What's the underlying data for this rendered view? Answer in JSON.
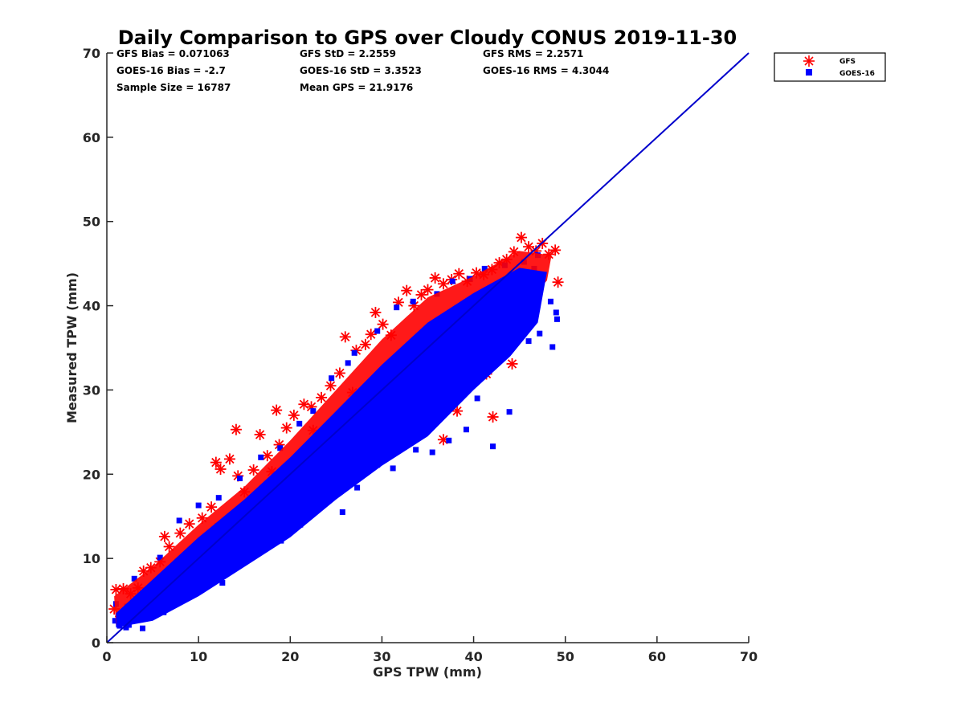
{
  "chart_data": {
    "type": "scatter",
    "title": "Daily Comparison to GPS over Cloudy CONUS 2019-11-30",
    "xlabel": "GPS TPW (mm)",
    "ylabel": "Measured TPW (mm)",
    "xlim": [
      0,
      70
    ],
    "ylim": [
      0,
      70
    ],
    "xticks": [
      "0",
      "10",
      "20",
      "30",
      "40",
      "50",
      "60",
      "70"
    ],
    "yticks": [
      "0",
      "10",
      "20",
      "30",
      "40",
      "50",
      "60",
      "70"
    ],
    "grid": false,
    "legend_position": "outside-top-right",
    "stats": {
      "gfs_bias": "GFS Bias = 0.071063",
      "goes_bias": "GOES-16 Bias = -2.7",
      "sample_size": "Sample Size = 16787",
      "gfs_std": "GFS StD = 2.2559",
      "goes_std": "GOES-16 StD = 3.3523",
      "mean_gps": "Mean GPS = 21.9176",
      "gfs_rms": "GFS RMS = 2.2571",
      "goes_rms": "GOES-16 RMS = 4.3044"
    },
    "reference_line": {
      "x": [
        0,
        70
      ],
      "y": [
        0,
        70
      ],
      "color": "#0000cc"
    },
    "series": [
      {
        "name": "GFS",
        "marker": "asterisk",
        "color": "#ff0000",
        "points": [
          [
            0.8,
            4.0
          ],
          [
            1.0,
            6.3
          ],
          [
            1.8,
            6.4
          ],
          [
            2.6,
            5.8
          ],
          [
            3.4,
            6.5
          ],
          [
            4.0,
            8.5
          ],
          [
            4.8,
            8.9
          ],
          [
            5.8,
            9.6
          ],
          [
            6.3,
            12.6
          ],
          [
            6.8,
            11.4
          ],
          [
            8.0,
            13.0
          ],
          [
            9.0,
            14.1
          ],
          [
            10.4,
            14.8
          ],
          [
            11.4,
            16.1
          ],
          [
            11.9,
            21.4
          ],
          [
            12.4,
            20.6
          ],
          [
            13.4,
            21.8
          ],
          [
            14.1,
            25.3
          ],
          [
            14.3,
            19.8
          ],
          [
            15.0,
            17.9
          ],
          [
            16.0,
            20.5
          ],
          [
            16.7,
            24.7
          ],
          [
            17.5,
            22.2
          ],
          [
            18.5,
            27.6
          ],
          [
            18.8,
            23.5
          ],
          [
            19.6,
            25.5
          ],
          [
            20.4,
            27.0
          ],
          [
            21.5,
            28.3
          ],
          [
            22.3,
            28.0
          ],
          [
            23.4,
            29.1
          ],
          [
            24.4,
            30.5
          ],
          [
            25.4,
            32.0
          ],
          [
            26.0,
            36.3
          ],
          [
            27.2,
            34.7
          ],
          [
            28.2,
            35.4
          ],
          [
            28.8,
            36.6
          ],
          [
            29.3,
            39.2
          ],
          [
            30.1,
            37.8
          ],
          [
            31.0,
            36.5
          ],
          [
            31.8,
            40.4
          ],
          [
            32.7,
            41.8
          ],
          [
            33.5,
            40.0
          ],
          [
            34.3,
            41.3
          ],
          [
            35.0,
            41.9
          ],
          [
            35.8,
            43.3
          ],
          [
            36.7,
            42.6
          ],
          [
            37.6,
            43.1
          ],
          [
            38.4,
            43.8
          ],
          [
            39.3,
            42.9
          ],
          [
            40.3,
            43.9
          ],
          [
            41.1,
            43.7
          ],
          [
            42.0,
            44.3
          ],
          [
            42.8,
            45.1
          ],
          [
            43.6,
            45.5
          ],
          [
            44.4,
            46.4
          ],
          [
            45.2,
            48.1
          ],
          [
            46.0,
            47.0
          ],
          [
            46.8,
            46.5
          ],
          [
            47.5,
            47.4
          ],
          [
            48.2,
            46.1
          ],
          [
            48.9,
            46.6
          ],
          [
            49.2,
            42.8
          ],
          [
            44.2,
            33.1
          ],
          [
            42.1,
            26.8
          ],
          [
            43.0,
            36.1
          ],
          [
            32.0,
            26.8
          ],
          [
            36.7,
            24.1
          ],
          [
            44.8,
            37.4
          ],
          [
            41.4,
            31.9
          ],
          [
            38.2,
            27.5
          ],
          [
            34.0,
            28.9
          ],
          [
            30.5,
            31.1
          ],
          [
            26.8,
            29.7
          ],
          [
            22.5,
            25.2
          ],
          [
            18.0,
            20.3
          ],
          [
            12.2,
            13.7
          ],
          [
            7.3,
            8.8
          ],
          [
            3.0,
            4.6
          ],
          [
            1.5,
            3.1
          ],
          [
            10.0,
            7.5
          ],
          [
            15.6,
            12.4
          ],
          [
            20.1,
            18.7
          ],
          [
            24.0,
            22.6
          ],
          [
            28.0,
            25.3
          ]
        ]
      },
      {
        "name": "GOES-16",
        "marker": "square",
        "color": "#0000ff",
        "points": [
          [
            0.9,
            2.6
          ],
          [
            1.4,
            2.0
          ],
          [
            1.6,
            3.3
          ],
          [
            2.4,
            2.1
          ],
          [
            2.9,
            3.1
          ],
          [
            3.6,
            2.8
          ],
          [
            4.4,
            3.2
          ],
          [
            5.1,
            3.8
          ],
          [
            5.9,
            4.4
          ],
          [
            6.5,
            5.1
          ],
          [
            7.4,
            5.9
          ],
          [
            8.3,
            6.6
          ],
          [
            9.1,
            7.3
          ],
          [
            10.1,
            8.0
          ],
          [
            11.0,
            9.0
          ],
          [
            11.9,
            9.6
          ],
          [
            12.8,
            10.4
          ],
          [
            13.6,
            11.3
          ],
          [
            14.6,
            12.0
          ],
          [
            15.5,
            13.1
          ],
          [
            16.4,
            13.8
          ],
          [
            17.3,
            14.8
          ],
          [
            18.3,
            15.6
          ],
          [
            19.2,
            16.7
          ],
          [
            20.2,
            17.5
          ],
          [
            21.1,
            18.4
          ],
          [
            22.1,
            19.2
          ],
          [
            23.0,
            20.4
          ],
          [
            24.1,
            21.2
          ],
          [
            25.0,
            22.3
          ],
          [
            26.0,
            23.4
          ],
          [
            26.9,
            24.3
          ],
          [
            28.0,
            25.1
          ],
          [
            28.9,
            26.4
          ],
          [
            29.9,
            27.3
          ],
          [
            30.9,
            28.2
          ],
          [
            31.9,
            29.5
          ],
          [
            32.9,
            30.4
          ],
          [
            33.9,
            31.6
          ],
          [
            34.8,
            32.8
          ],
          [
            35.9,
            33.8
          ],
          [
            36.9,
            34.9
          ],
          [
            37.9,
            36.0
          ],
          [
            38.9,
            37.0
          ],
          [
            39.9,
            38.1
          ],
          [
            40.9,
            39.1
          ],
          [
            41.9,
            40.2
          ],
          [
            42.8,
            41.2
          ],
          [
            43.8,
            42.1
          ],
          [
            44.8,
            43.0
          ],
          [
            45.7,
            43.9
          ],
          [
            46.6,
            44.4
          ],
          [
            47.5,
            43.1
          ],
          [
            48.4,
            40.5
          ],
          [
            49.1,
            38.4
          ],
          [
            49.0,
            39.2
          ],
          [
            48.6,
            35.1
          ],
          [
            47.2,
            36.7
          ],
          [
            46.0,
            35.8
          ],
          [
            44.7,
            37.3
          ],
          [
            43.9,
            27.4
          ],
          [
            42.1,
            23.3
          ],
          [
            40.4,
            29.0
          ],
          [
            39.2,
            25.3
          ],
          [
            37.3,
            24.0
          ],
          [
            35.5,
            22.6
          ],
          [
            33.7,
            22.9
          ],
          [
            31.2,
            20.7
          ],
          [
            29.5,
            21.1
          ],
          [
            27.3,
            18.4
          ],
          [
            25.7,
            15.5
          ],
          [
            23.3,
            16.2
          ],
          [
            21.1,
            14.0
          ],
          [
            19.0,
            12.1
          ],
          [
            16.5,
            10.8
          ],
          [
            14.3,
            9.3
          ],
          [
            12.6,
            7.1
          ],
          [
            10.3,
            6.6
          ],
          [
            8.2,
            5.1
          ],
          [
            6.2,
            3.6
          ],
          [
            3.9,
            1.7
          ],
          [
            2.1,
            1.8
          ],
          [
            1.0,
            4.6
          ],
          [
            3.0,
            7.6
          ],
          [
            5.8,
            10.1
          ],
          [
            7.9,
            14.5
          ],
          [
            10.0,
            16.3
          ],
          [
            12.2,
            17.2
          ],
          [
            14.5,
            19.5
          ],
          [
            16.8,
            22.0
          ],
          [
            18.9,
            23.1
          ],
          [
            21.0,
            26.0
          ],
          [
            22.5,
            27.5
          ],
          [
            24.5,
            31.4
          ],
          [
            26.3,
            33.2
          ],
          [
            27.0,
            34.4
          ],
          [
            29.5,
            37.0
          ],
          [
            31.6,
            39.8
          ],
          [
            33.4,
            40.5
          ],
          [
            36.0,
            41.4
          ],
          [
            37.7,
            42.9
          ],
          [
            39.6,
            43.2
          ],
          [
            41.2,
            44.4
          ],
          [
            43.4,
            44.8
          ],
          [
            45.5,
            45.2
          ],
          [
            47.0,
            46.0
          ],
          [
            23.8,
            20.3
          ],
          [
            17.6,
            15.0
          ],
          [
            20.3,
            19.0
          ],
          [
            25.6,
            26.1
          ],
          [
            30.3,
            32.0
          ],
          [
            34.7,
            36.2
          ],
          [
            38.3,
            39.5
          ],
          [
            41.6,
            38.3
          ],
          [
            27.8,
            28.6
          ],
          [
            13.0,
            12.7
          ],
          [
            8.6,
            9.7
          ],
          [
            4.5,
            5.9
          ],
          [
            2.2,
            4.3
          ]
        ]
      }
    ]
  },
  "legend": {
    "items": [
      {
        "label": "GFS",
        "color": "#ff0000",
        "marker": "asterisk"
      },
      {
        "label": "GOES-16",
        "color": "#0000ff",
        "marker": "square"
      }
    ]
  }
}
